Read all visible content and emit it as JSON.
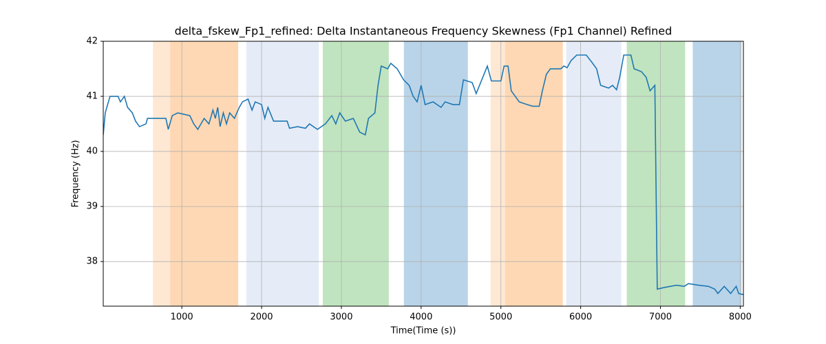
{
  "chart_data": {
    "type": "line",
    "title": "delta_fskew_Fp1_refined: Delta Instantaneous Frequency Skewness (Fp1 Channel) Refined",
    "xlabel": "Time(Time (s))",
    "ylabel": "Frequency (Hz)",
    "xlim": [
      15,
      8040
    ],
    "ylim": [
      37.19,
      42
    ],
    "xticks": [
      1000,
      2000,
      3000,
      4000,
      5000,
      6000,
      7000,
      8000
    ],
    "yticks": [
      38,
      39,
      40,
      41,
      42
    ],
    "grid": true,
    "spans": [
      {
        "x0": 638,
        "x1": 853,
        "color": "#ffe8d3"
      },
      {
        "x0": 853,
        "x1": 1707,
        "color": "#fed8b4"
      },
      {
        "x0": 1810,
        "x1": 2716,
        "color": "#e5ecf7"
      },
      {
        "x0": 2767,
        "x1": 3595,
        "color": "#c0e4bf"
      },
      {
        "x0": 3784,
        "x1": 4586,
        "color": "#b9d4e8"
      },
      {
        "x0": 4871,
        "x1": 5052,
        "color": "#ffe8d3"
      },
      {
        "x0": 5052,
        "x1": 5776,
        "color": "#fed8b4"
      },
      {
        "x0": 5819,
        "x1": 6509,
        "color": "#e5ecf7"
      },
      {
        "x0": 6578,
        "x1": 7310,
        "color": "#c0e4bf"
      },
      {
        "x0": 7405,
        "x1": 8017,
        "color": "#b9d4e8"
      }
    ],
    "series": [
      {
        "color": "#1f77b4",
        "x": [
          15,
          40,
          100,
          200,
          230,
          280,
          320,
          380,
          420,
          470,
          550,
          570,
          800,
          830,
          880,
          950,
          1100,
          1150,
          1200,
          1280,
          1340,
          1390,
          1420,
          1450,
          1480,
          1520,
          1560,
          1600,
          1660,
          1720,
          1760,
          1830,
          1880,
          1920,
          2000,
          2040,
          2080,
          2150,
          2320,
          2350,
          2450,
          2550,
          2600,
          2700,
          2800,
          2880,
          2930,
          2980,
          3050,
          3150,
          3230,
          3300,
          3340,
          3420,
          3460,
          3500,
          3580,
          3620,
          3700,
          3780,
          3850,
          3900,
          3950,
          4000,
          4050,
          4150,
          4250,
          4300,
          4400,
          4480,
          4530,
          4640,
          4690,
          4760,
          4830,
          4880,
          5000,
          5040,
          5090,
          5130,
          5230,
          5330,
          5400,
          5480,
          5520,
          5570,
          5620,
          5750,
          5790,
          5830,
          5880,
          5950,
          6070,
          6150,
          6200,
          6250,
          6350,
          6400,
          6450,
          6490,
          6540,
          6630,
          6670,
          6760,
          6820,
          6870,
          6930,
          6960,
          7050,
          7200,
          7300,
          7350,
          7480,
          7600,
          7680,
          7720,
          7800,
          7880,
          7950,
          7980,
          8040
        ],
        "values": [
          40.3,
          40.7,
          41.0,
          41.0,
          40.9,
          41.0,
          40.8,
          40.7,
          40.55,
          40.45,
          40.5,
          40.6,
          40.6,
          40.4,
          40.65,
          40.7,
          40.65,
          40.5,
          40.4,
          40.6,
          40.5,
          40.75,
          40.6,
          40.8,
          40.45,
          40.7,
          40.5,
          40.7,
          40.6,
          40.8,
          40.9,
          40.95,
          40.75,
          40.9,
          40.85,
          40.6,
          40.8,
          40.55,
          40.55,
          40.42,
          40.45,
          40.42,
          40.5,
          40.4,
          40.5,
          40.65,
          40.5,
          40.7,
          40.55,
          40.6,
          40.35,
          40.3,
          40.6,
          40.7,
          41.2,
          41.55,
          41.5,
          41.6,
          41.5,
          41.3,
          41.2,
          41.0,
          40.9,
          41.2,
          40.85,
          40.9,
          40.8,
          40.9,
          40.85,
          40.85,
          41.3,
          41.25,
          41.05,
          41.3,
          41.55,
          41.28,
          41.28,
          41.55,
          41.55,
          41.1,
          40.9,
          40.85,
          40.82,
          40.82,
          41.1,
          41.4,
          41.5,
          41.5,
          41.55,
          41.52,
          41.65,
          41.75,
          41.75,
          41.6,
          41.5,
          41.2,
          41.15,
          41.2,
          41.12,
          41.35,
          41.75,
          41.75,
          41.5,
          41.45,
          41.35,
          41.1,
          41.2,
          37.5,
          37.53,
          37.57,
          37.55,
          37.6,
          37.57,
          37.55,
          37.5,
          37.42,
          37.55,
          37.42,
          37.55,
          37.42,
          37.4
        ]
      }
    ]
  }
}
